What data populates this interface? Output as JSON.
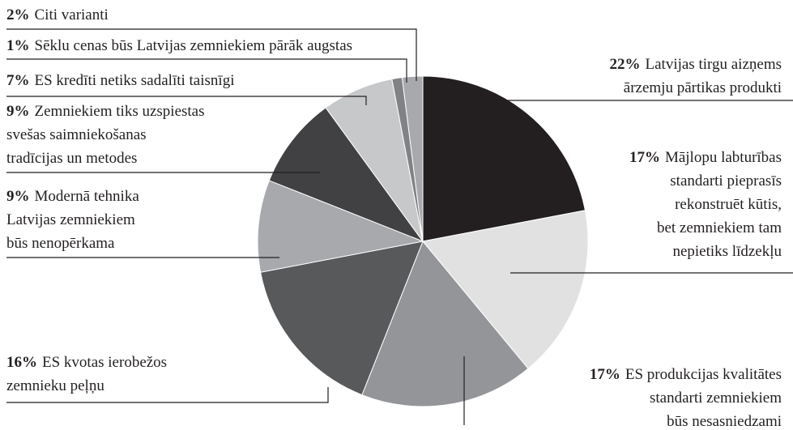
{
  "chart_data": {
    "type": "pie",
    "categories": [
      [
        "Latvijas tirgu aizņems",
        "ārzemju pārtikas produkti"
      ],
      [
        "Mājlopu labturības",
        "standarti pieprasīs",
        "rekonstruēt kūtis,",
        "bet zemniekiem tam",
        "nepietiks līdzekļu"
      ],
      [
        "ES produkcijas kvalitātes",
        "standarti zemniekiem",
        "būs nesasniedzami"
      ],
      [
        "ES kvotas ierobežos",
        "zemnieku peļņu"
      ],
      [
        "Modernā tehnika",
        "Latvijas zemniekiem",
        "būs nenopērkama"
      ],
      [
        "Zemniekiem tiks uzspiestas",
        "svešas saimniekošanas",
        "tradīcijas un metodes"
      ],
      [
        "ES kredīti netiks sadalīti taisnīgi"
      ],
      [
        "Sēklu cenas būs Latvijas zemniekiem pārāk augstas"
      ],
      [
        "Citi varianti"
      ]
    ],
    "values": [
      22,
      17,
      17,
      16,
      9,
      9,
      7,
      1,
      2
    ],
    "value_labels": [
      "22%",
      "17%",
      "17%",
      "16%",
      "9%",
      "9%",
      "7%",
      "1%",
      "2%"
    ],
    "colors": [
      "#231f20",
      "#e1e1e2",
      "#939598",
      "#58595b",
      "#a7a9ac",
      "#414042",
      "#c7c8ca",
      "#808285",
      "#a7a9ac"
    ]
  }
}
